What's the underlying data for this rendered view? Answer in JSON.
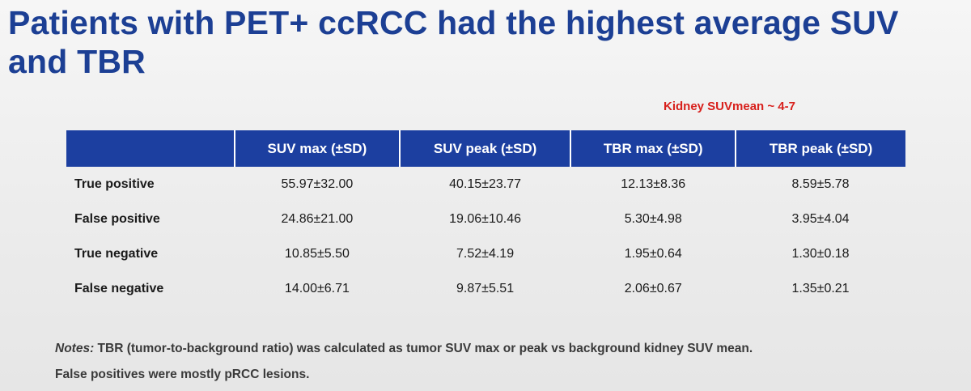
{
  "slide": {
    "title": "Patients with PET+ ccRCC had the highest average SUV and TBR",
    "kidney_note": "Kidney SUVmean ~ 4-7",
    "table": {
      "columns": [
        "",
        "SUV max (±SD)",
        "SUV peak (±SD)",
        "TBR max (±SD)",
        "TBR peak (±SD)"
      ],
      "rows": [
        [
          "True positive",
          "55.97±32.00",
          "40.15±23.77",
          "12.13±8.36",
          "8.59±5.78"
        ],
        [
          "False positive",
          "24.86±21.00",
          "19.06±10.46",
          "5.30±4.98",
          "3.95±4.04"
        ],
        [
          "True negative",
          "10.85±5.50",
          "7.52±4.19",
          "1.95±0.64",
          "1.30±0.18"
        ],
        [
          "False negative",
          "14.00±6.71",
          "9.87±5.51",
          "2.06±0.67",
          "1.35±0.21"
        ]
      ]
    },
    "notes": {
      "label": "Notes:",
      "line1": "TBR (tumor-to-background ratio) was calculated as tumor SUV max or peak vs background kidney SUV mean.",
      "line2": "False positives were mostly pRCC lesions."
    }
  },
  "colors": {
    "title": "#1c3f94",
    "header_bg": "#1c3fa0",
    "kidney_note": "#d8201c"
  }
}
